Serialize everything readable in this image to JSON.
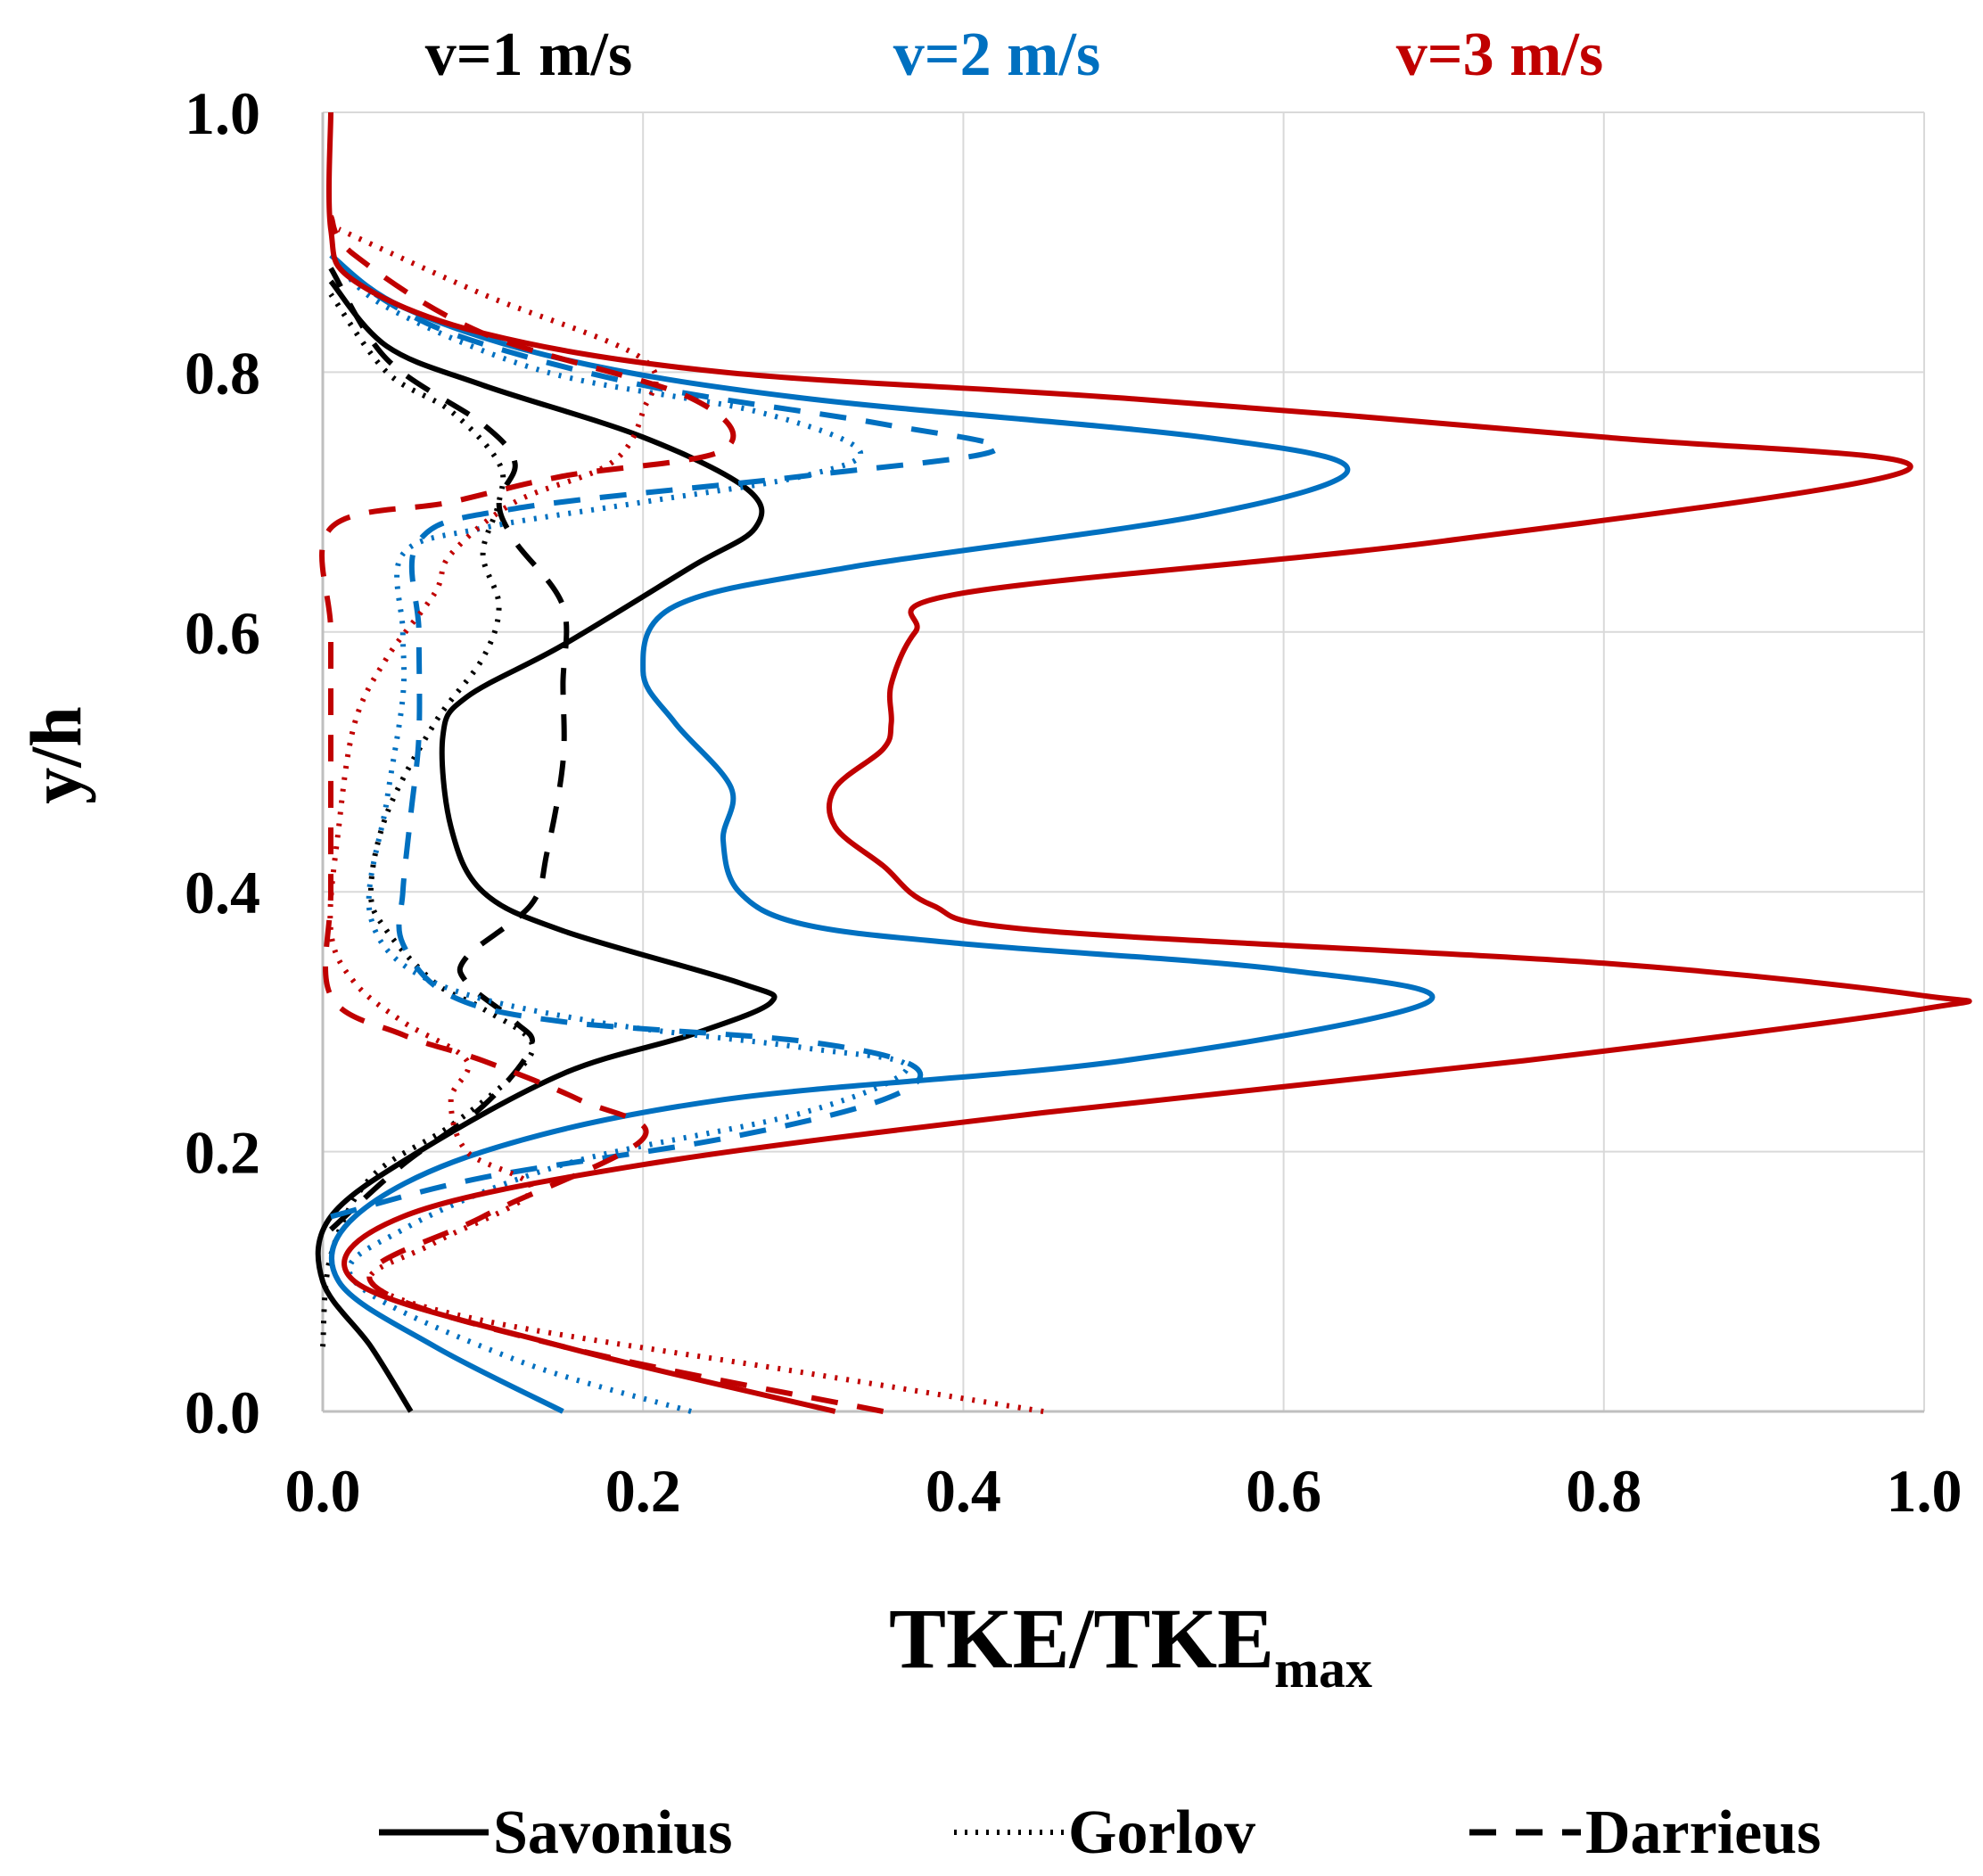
{
  "chart_data": {
    "type": "line",
    "title": "",
    "xlabel": "TKE/TKE",
    "xlabel_subscript": "max",
    "ylabel": "y/h",
    "xlim": [
      0,
      1
    ],
    "ylim": [
      0,
      1
    ],
    "grid": true,
    "x_ticks": [
      "0.0",
      "0.2",
      "0.4",
      "0.6",
      "0.8",
      "1.0"
    ],
    "y_ticks": [
      "0.0",
      "0.2",
      "0.4",
      "0.6",
      "0.8",
      "1.0"
    ],
    "speed_labels": [
      {
        "text": "v=1 m/s",
        "color": "#000000"
      },
      {
        "text": "v=2 m/s",
        "color": "#0070c0"
      },
      {
        "text": "v=3 m/s",
        "color": "#c00000"
      }
    ],
    "legend": [
      {
        "label": "Savonius",
        "style": "solid"
      },
      {
        "label": "Gorlov",
        "style": "dotted"
      },
      {
        "label": "Darrieus",
        "style": "dashed"
      }
    ],
    "legend_position": "bottom",
    "series": [
      {
        "name": "Savonius v=1 m/s",
        "turbine": "Savonius",
        "speed": "v=1 m/s",
        "color": "#000000",
        "style": "solid",
        "points": [
          [
            0.055,
            0.0
          ],
          [
            0.03,
            0.05
          ],
          [
            0.0,
            0.1
          ],
          [
            0.005,
            0.15
          ],
          [
            0.06,
            0.2
          ],
          [
            0.15,
            0.26
          ],
          [
            0.23,
            0.29
          ],
          [
            0.28,
            0.315
          ],
          [
            0.26,
            0.33
          ],
          [
            0.15,
            0.37
          ],
          [
            0.1,
            0.4
          ],
          [
            0.08,
            0.45
          ],
          [
            0.075,
            0.52
          ],
          [
            0.09,
            0.55
          ],
          [
            0.15,
            0.59
          ],
          [
            0.23,
            0.65
          ],
          [
            0.27,
            0.68
          ],
          [
            0.265,
            0.71
          ],
          [
            0.2,
            0.75
          ],
          [
            0.1,
            0.79
          ],
          [
            0.04,
            0.82
          ],
          [
            0.005,
            0.87
          ]
        ]
      },
      {
        "name": "Gorlov v=1 m/s",
        "turbine": "Gorlov",
        "speed": "v=1 m/s",
        "color": "#000000",
        "style": "dotted",
        "points": [
          [
            0.0,
            0.05
          ],
          [
            0.005,
            0.12
          ],
          [
            0.03,
            0.18
          ],
          [
            0.08,
            0.22
          ],
          [
            0.12,
            0.26
          ],
          [
            0.13,
            0.285
          ],
          [
            0.1,
            0.31
          ],
          [
            0.07,
            0.33
          ],
          [
            0.04,
            0.37
          ],
          [
            0.03,
            0.4
          ],
          [
            0.04,
            0.46
          ],
          [
            0.07,
            0.53
          ],
          [
            0.1,
            0.58
          ],
          [
            0.11,
            0.62
          ],
          [
            0.1,
            0.66
          ],
          [
            0.11,
            0.7
          ],
          [
            0.11,
            0.73
          ],
          [
            0.08,
            0.77
          ],
          [
            0.04,
            0.8
          ],
          [
            0.005,
            0.86
          ]
        ]
      },
      {
        "name": "Darrieus v=1 m/s",
        "turbine": "Darrieus",
        "speed": "v=1 m/s",
        "color": "#000000",
        "style": "dashed",
        "points": [
          [
            0.005,
            0.14
          ],
          [
            0.05,
            0.19
          ],
          [
            0.1,
            0.235
          ],
          [
            0.13,
            0.28
          ],
          [
            0.12,
            0.3
          ],
          [
            0.09,
            0.33
          ],
          [
            0.09,
            0.35
          ],
          [
            0.13,
            0.39
          ],
          [
            0.14,
            0.43
          ],
          [
            0.15,
            0.5
          ],
          [
            0.15,
            0.56
          ],
          [
            0.15,
            0.62
          ],
          [
            0.12,
            0.67
          ],
          [
            0.11,
            0.7
          ],
          [
            0.12,
            0.73
          ],
          [
            0.1,
            0.76
          ],
          [
            0.04,
            0.81
          ],
          [
            0.005,
            0.88
          ]
        ]
      },
      {
        "name": "Savonius v=2 m/s",
        "turbine": "Savonius",
        "speed": "v=2 m/s",
        "color": "#0070c0",
        "style": "solid",
        "points": [
          [
            0.15,
            0.0
          ],
          [
            0.07,
            0.05
          ],
          [
            0.01,
            0.1
          ],
          [
            0.02,
            0.15
          ],
          [
            0.1,
            0.2
          ],
          [
            0.25,
            0.24
          ],
          [
            0.5,
            0.27
          ],
          [
            0.69,
            0.315
          ],
          [
            0.6,
            0.34
          ],
          [
            0.4,
            0.36
          ],
          [
            0.3,
            0.375
          ],
          [
            0.26,
            0.4
          ],
          [
            0.25,
            0.44
          ],
          [
            0.255,
            0.48
          ],
          [
            0.22,
            0.53
          ],
          [
            0.2,
            0.57
          ],
          [
            0.22,
            0.62
          ],
          [
            0.33,
            0.65
          ],
          [
            0.55,
            0.69
          ],
          [
            0.64,
            0.725
          ],
          [
            0.55,
            0.75
          ],
          [
            0.3,
            0.78
          ],
          [
            0.15,
            0.81
          ],
          [
            0.05,
            0.85
          ],
          [
            0.005,
            0.89
          ]
        ]
      },
      {
        "name": "Gorlov v=2 m/s",
        "turbine": "Gorlov",
        "speed": "v=2 m/s",
        "color": "#0070c0",
        "style": "dotted",
        "points": [
          [
            0.23,
            0.0
          ],
          [
            0.12,
            0.04
          ],
          [
            0.02,
            0.1
          ],
          [
            0.05,
            0.14
          ],
          [
            0.15,
            0.19
          ],
          [
            0.3,
            0.23
          ],
          [
            0.365,
            0.265
          ],
          [
            0.3,
            0.28
          ],
          [
            0.17,
            0.3
          ],
          [
            0.07,
            0.33
          ],
          [
            0.03,
            0.38
          ],
          [
            0.04,
            0.47
          ],
          [
            0.05,
            0.55
          ],
          [
            0.05,
            0.6
          ],
          [
            0.05,
            0.66
          ],
          [
            0.1,
            0.68
          ],
          [
            0.2,
            0.7
          ],
          [
            0.3,
            0.72
          ],
          [
            0.335,
            0.74
          ],
          [
            0.27,
            0.77
          ],
          [
            0.14,
            0.8
          ],
          [
            0.04,
            0.85
          ],
          [
            0.005,
            0.89
          ]
        ]
      },
      {
        "name": "Darrieus v=2 m/s",
        "turbine": "Darrieus",
        "speed": "v=2 m/s",
        "color": "#0070c0",
        "style": "dashed",
        "points": [
          [
            0.005,
            0.15
          ],
          [
            0.1,
            0.18
          ],
          [
            0.25,
            0.21
          ],
          [
            0.35,
            0.24
          ],
          [
            0.37,
            0.265
          ],
          [
            0.3,
            0.285
          ],
          [
            0.15,
            0.3
          ],
          [
            0.08,
            0.32
          ],
          [
            0.05,
            0.36
          ],
          [
            0.05,
            0.4
          ],
          [
            0.055,
            0.46
          ],
          [
            0.06,
            0.52
          ],
          [
            0.06,
            0.6
          ],
          [
            0.06,
            0.67
          ],
          [
            0.12,
            0.695
          ],
          [
            0.3,
            0.72
          ],
          [
            0.42,
            0.74
          ],
          [
            0.35,
            0.76
          ],
          [
            0.2,
            0.79
          ],
          [
            0.08,
            0.83
          ],
          [
            0.02,
            0.87
          ]
        ]
      },
      {
        "name": "Savonius v=3 m/s",
        "turbine": "Savonius",
        "speed": "v=3 m/s",
        "color": "#c00000",
        "style": "solid",
        "points": [
          [
            0.32,
            0.0
          ],
          [
            0.15,
            0.05
          ],
          [
            0.02,
            0.1
          ],
          [
            0.05,
            0.15
          ],
          [
            0.2,
            0.19
          ],
          [
            0.45,
            0.23
          ],
          [
            0.75,
            0.27
          ],
          [
            1.0,
            0.31
          ],
          [
            1.0,
            0.32
          ],
          [
            0.8,
            0.345
          ],
          [
            0.45,
            0.37
          ],
          [
            0.38,
            0.39
          ],
          [
            0.35,
            0.42
          ],
          [
            0.32,
            0.45
          ],
          [
            0.32,
            0.48
          ],
          [
            0.35,
            0.51
          ],
          [
            0.355,
            0.53
          ],
          [
            0.355,
            0.56
          ],
          [
            0.37,
            0.6
          ],
          [
            0.4,
            0.63
          ],
          [
            0.7,
            0.67
          ],
          [
            0.99,
            0.725
          ],
          [
            0.8,
            0.75
          ],
          [
            0.5,
            0.78
          ],
          [
            0.25,
            0.8
          ],
          [
            0.1,
            0.83
          ],
          [
            0.02,
            0.87
          ],
          [
            0.005,
            0.91
          ],
          [
            0.005,
            1.0
          ]
        ]
      },
      {
        "name": "Gorlov v=3 m/s",
        "turbine": "Gorlov",
        "speed": "v=3 m/s",
        "color": "#c00000",
        "style": "dotted",
        "points": [
          [
            0.45,
            0.0
          ],
          [
            0.3,
            0.03
          ],
          [
            0.1,
            0.07
          ],
          [
            0.03,
            0.1
          ],
          [
            0.07,
            0.13
          ],
          [
            0.13,
            0.17
          ],
          [
            0.09,
            0.2
          ],
          [
            0.08,
            0.24
          ],
          [
            0.09,
            0.27
          ],
          [
            0.05,
            0.3
          ],
          [
            0.02,
            0.33
          ],
          [
            0.005,
            0.37
          ],
          [
            0.01,
            0.45
          ],
          [
            0.02,
            0.53
          ],
          [
            0.04,
            0.58
          ],
          [
            0.07,
            0.63
          ],
          [
            0.08,
            0.66
          ],
          [
            0.12,
            0.7
          ],
          [
            0.18,
            0.73
          ],
          [
            0.2,
            0.77
          ],
          [
            0.2,
            0.81
          ],
          [
            0.1,
            0.86
          ],
          [
            0.01,
            0.91
          ]
        ]
      },
      {
        "name": "Darrieus v=3 m/s",
        "turbine": "Darrieus",
        "speed": "v=3 m/s",
        "color": "#c00000",
        "style": "dashed",
        "points": [
          [
            0.35,
            0.0
          ],
          [
            0.15,
            0.05
          ],
          [
            0.03,
            0.1
          ],
          [
            0.1,
            0.15
          ],
          [
            0.2,
            0.21
          ],
          [
            0.16,
            0.24
          ],
          [
            0.1,
            0.27
          ],
          [
            0.05,
            0.29
          ],
          [
            0.005,
            0.32
          ],
          [
            0.005,
            0.4
          ],
          [
            0.005,
            0.5
          ],
          [
            0.005,
            0.6
          ],
          [
            0.005,
            0.68
          ],
          [
            0.08,
            0.7
          ],
          [
            0.15,
            0.72
          ],
          [
            0.25,
            0.74
          ],
          [
            0.23,
            0.78
          ],
          [
            0.1,
            0.83
          ],
          [
            0.02,
            0.89
          ],
          [
            0.005,
            0.92
          ]
        ]
      }
    ]
  }
}
